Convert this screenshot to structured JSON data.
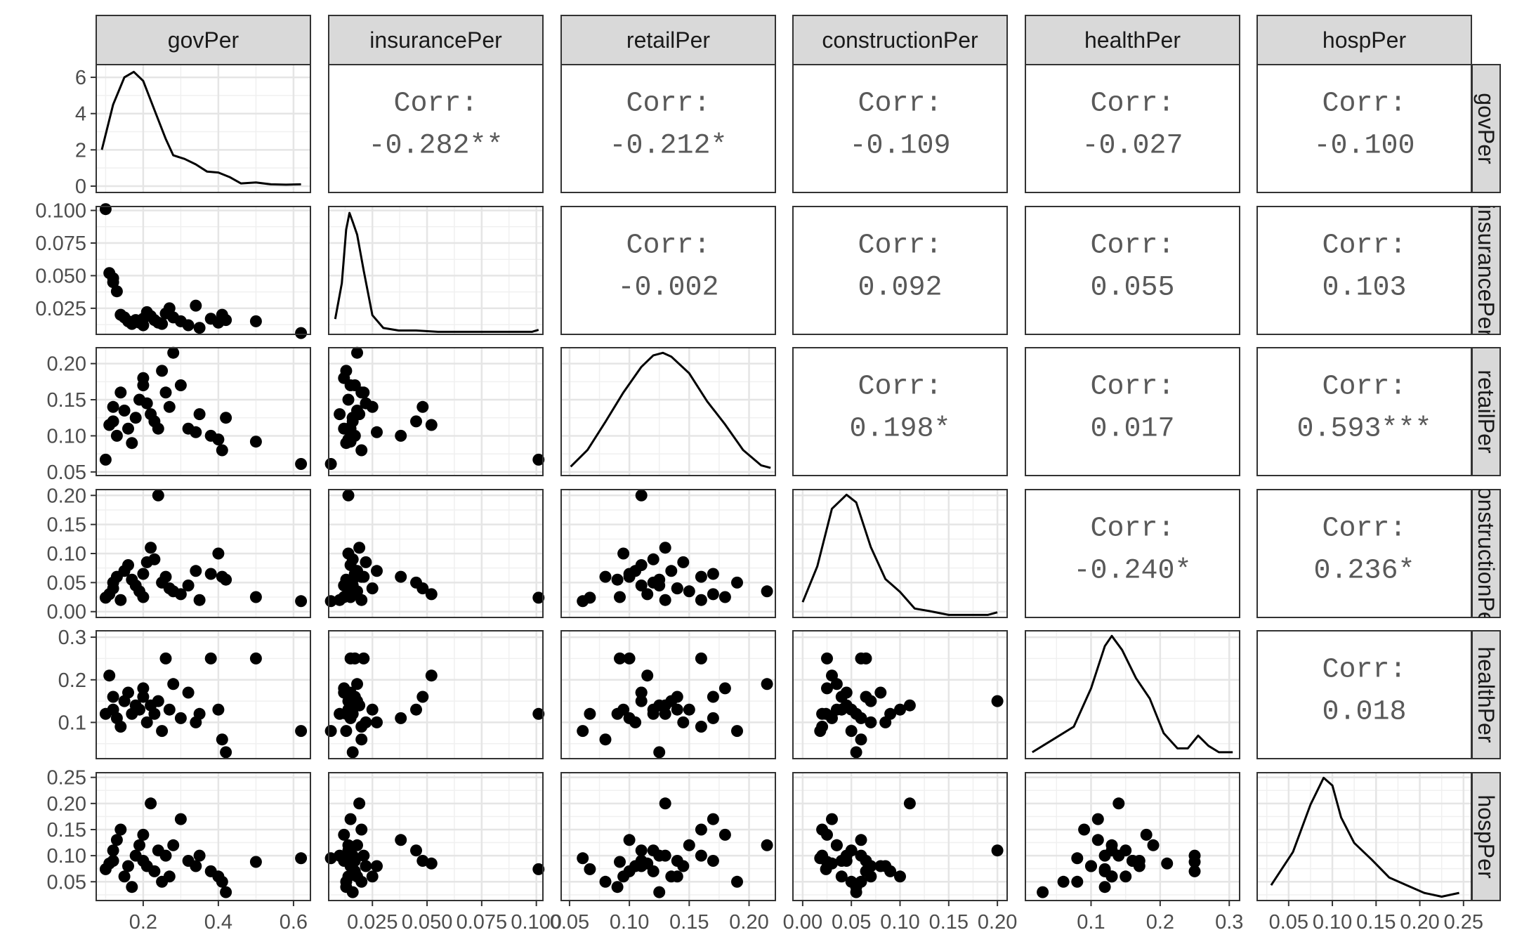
{
  "chart_data": {
    "type": "scatter-matrix",
    "variables": [
      "govPer",
      "insurancePer",
      "retailPer",
      "constructionPer",
      "healthPer",
      "hospPer"
    ],
    "x_axes": [
      {
        "range": [
          0.075,
          0.645
        ],
        "ticks": [
          0.2,
          0.4,
          0.6
        ],
        "tick_labels": [
          "0.2",
          "0.4",
          "0.6"
        ]
      },
      {
        "range": [
          0.005,
          0.103
        ],
        "ticks": [
          0.025,
          0.05,
          0.075,
          0.1
        ],
        "tick_labels": [
          "0.025",
          "0.050",
          "0.075",
          "0.100"
        ]
      },
      {
        "range": [
          0.043,
          0.222
        ],
        "ticks": [
          0.05,
          0.1,
          0.15,
          0.2
        ],
        "tick_labels": [
          "0.05",
          "0.10",
          "0.15",
          "0.20"
        ]
      },
      {
        "range": [
          -0.01,
          0.21
        ],
        "ticks": [
          0.0,
          0.05,
          0.1,
          0.15,
          0.2
        ],
        "tick_labels": [
          "0.00",
          "0.05",
          "0.10",
          "0.15",
          "0.20"
        ]
      },
      {
        "range": [
          0.005,
          0.315
        ],
        "ticks": [
          0.1,
          0.2,
          0.3
        ],
        "tick_labels": [
          "0.1",
          "0.2",
          "0.3"
        ]
      },
      {
        "range": [
          0.014,
          0.259
        ],
        "ticks": [
          0.05,
          0.1,
          0.15,
          0.2,
          0.25
        ],
        "tick_labels": [
          "0.05",
          "0.10",
          "0.15",
          "0.20",
          "0.25"
        ]
      }
    ],
    "y_axes": [
      {
        "range": [
          -0.35,
          6.7
        ],
        "ticks": [
          0,
          2,
          4,
          6
        ],
        "tick_labels": [
          "0",
          "2",
          "4",
          "6"
        ]
      },
      {
        "range": [
          0.005,
          0.103
        ],
        "ticks": [
          0.025,
          0.05,
          0.075,
          0.1
        ],
        "tick_labels": [
          "0.025",
          "0.050",
          "0.075",
          "0.100"
        ]
      },
      {
        "range": [
          0.045,
          0.222
        ],
        "ticks": [
          0.05,
          0.1,
          0.15,
          0.2
        ],
        "tick_labels": [
          "0.05",
          "0.10",
          "0.15",
          "0.20"
        ]
      },
      {
        "range": [
          -0.01,
          0.21
        ],
        "ticks": [
          0.0,
          0.05,
          0.1,
          0.15,
          0.2
        ],
        "tick_labels": [
          "0.00",
          "0.05",
          "0.10",
          "0.15",
          "0.20"
        ]
      },
      {
        "range": [
          0.015,
          0.315
        ],
        "ticks": [
          0.1,
          0.2,
          0.3
        ],
        "tick_labels": [
          "0.1",
          "0.2",
          "0.3"
        ]
      },
      {
        "range": [
          0.014,
          0.259
        ],
        "ticks": [
          0.05,
          0.1,
          0.15,
          0.2,
          0.25
        ],
        "tick_labels": [
          "0.05",
          "0.10",
          "0.15",
          "0.20",
          "0.25"
        ]
      }
    ],
    "correlations": [
      {
        "row": 0,
        "col": 1,
        "label": "Corr:",
        "value": "-0.282**"
      },
      {
        "row": 0,
        "col": 2,
        "label": "Corr:",
        "value": "-0.212*"
      },
      {
        "row": 0,
        "col": 3,
        "label": "Corr:",
        "value": "-0.109"
      },
      {
        "row": 0,
        "col": 4,
        "label": "Corr:",
        "value": "-0.027"
      },
      {
        "row": 0,
        "col": 5,
        "label": "Corr:",
        "value": "-0.100"
      },
      {
        "row": 1,
        "col": 2,
        "label": "Corr:",
        "value": "-0.002"
      },
      {
        "row": 1,
        "col": 3,
        "label": "Corr:",
        "value": "0.092"
      },
      {
        "row": 1,
        "col": 4,
        "label": "Corr:",
        "value": "0.055"
      },
      {
        "row": 1,
        "col": 5,
        "label": "Corr:",
        "value": "0.103"
      },
      {
        "row": 2,
        "col": 3,
        "label": "Corr:",
        "value": "0.198*"
      },
      {
        "row": 2,
        "col": 4,
        "label": "Corr:",
        "value": "0.017"
      },
      {
        "row": 2,
        "col": 5,
        "label": "Corr:",
        "value": "0.593***"
      },
      {
        "row": 3,
        "col": 4,
        "label": "Corr:",
        "value": "-0.240*"
      },
      {
        "row": 3,
        "col": 5,
        "label": "Corr:",
        "value": "0.236*"
      },
      {
        "row": 4,
        "col": 5,
        "label": "Corr:",
        "value": "0.018"
      }
    ],
    "density_curves": [
      {
        "variable": "govPer",
        "axis_y_range": [
          -0.35,
          6.7
        ],
        "points": [
          [
            0.09,
            2.0
          ],
          [
            0.12,
            4.5
          ],
          [
            0.15,
            6.0
          ],
          [
            0.175,
            6.3
          ],
          [
            0.2,
            5.8
          ],
          [
            0.23,
            4.2
          ],
          [
            0.26,
            2.6
          ],
          [
            0.28,
            1.7
          ],
          [
            0.31,
            1.5
          ],
          [
            0.34,
            1.2
          ],
          [
            0.37,
            0.8
          ],
          [
            0.4,
            0.75
          ],
          [
            0.43,
            0.5
          ],
          [
            0.46,
            0.15
          ],
          [
            0.5,
            0.2
          ],
          [
            0.54,
            0.1
          ],
          [
            0.58,
            0.08
          ],
          [
            0.62,
            0.1
          ]
        ]
      },
      {
        "variable": "insurancePer",
        "axis_y_range": [
          0,
          1
        ],
        "points": [
          [
            0.008,
            0.12
          ],
          [
            0.011,
            0.4
          ],
          [
            0.013,
            0.82
          ],
          [
            0.0145,
            0.95
          ],
          [
            0.016,
            0.88
          ],
          [
            0.018,
            0.78
          ],
          [
            0.021,
            0.5
          ],
          [
            0.025,
            0.15
          ],
          [
            0.03,
            0.05
          ],
          [
            0.037,
            0.03
          ],
          [
            0.045,
            0.03
          ],
          [
            0.055,
            0.02
          ],
          [
            0.07,
            0.02
          ],
          [
            0.085,
            0.02
          ],
          [
            0.098,
            0.02
          ],
          [
            0.101,
            0.035
          ]
        ]
      },
      {
        "variable": "retailPer",
        "axis_y_range": [
          0,
          1
        ],
        "points": [
          [
            0.051,
            0.07
          ],
          [
            0.065,
            0.2
          ],
          [
            0.08,
            0.42
          ],
          [
            0.095,
            0.65
          ],
          [
            0.11,
            0.85
          ],
          [
            0.12,
            0.94
          ],
          [
            0.128,
            0.96
          ],
          [
            0.135,
            0.93
          ],
          [
            0.15,
            0.8
          ],
          [
            0.165,
            0.58
          ],
          [
            0.18,
            0.4
          ],
          [
            0.195,
            0.2
          ],
          [
            0.21,
            0.08
          ],
          [
            0.218,
            0.06
          ]
        ]
      },
      {
        "variable": "constructionPer",
        "axis_y_range": [
          0,
          1
        ],
        "points": [
          [
            0.0,
            0.12
          ],
          [
            0.015,
            0.4
          ],
          [
            0.03,
            0.85
          ],
          [
            0.045,
            0.96
          ],
          [
            0.055,
            0.9
          ],
          [
            0.07,
            0.55
          ],
          [
            0.085,
            0.3
          ],
          [
            0.1,
            0.2
          ],
          [
            0.115,
            0.07
          ],
          [
            0.13,
            0.05
          ],
          [
            0.15,
            0.02
          ],
          [
            0.17,
            0.02
          ],
          [
            0.19,
            0.02
          ],
          [
            0.2,
            0.04
          ]
        ]
      },
      {
        "variable": "healthPer",
        "axis_y_range": [
          0,
          1
        ],
        "points": [
          [
            0.015,
            0.05
          ],
          [
            0.045,
            0.15
          ],
          [
            0.075,
            0.25
          ],
          [
            0.1,
            0.55
          ],
          [
            0.12,
            0.88
          ],
          [
            0.13,
            0.96
          ],
          [
            0.145,
            0.85
          ],
          [
            0.165,
            0.63
          ],
          [
            0.185,
            0.47
          ],
          [
            0.205,
            0.2
          ],
          [
            0.225,
            0.08
          ],
          [
            0.24,
            0.08
          ],
          [
            0.255,
            0.18
          ],
          [
            0.27,
            0.1
          ],
          [
            0.285,
            0.05
          ],
          [
            0.305,
            0.05
          ]
        ]
      },
      {
        "variable": "hospPer",
        "axis_y_range": [
          0,
          1
        ],
        "points": [
          [
            0.03,
            0.12
          ],
          [
            0.055,
            0.38
          ],
          [
            0.075,
            0.75
          ],
          [
            0.09,
            0.96
          ],
          [
            0.1,
            0.9
          ],
          [
            0.11,
            0.65
          ],
          [
            0.125,
            0.45
          ],
          [
            0.145,
            0.32
          ],
          [
            0.165,
            0.18
          ],
          [
            0.185,
            0.12
          ],
          [
            0.205,
            0.06
          ],
          [
            0.225,
            0.03
          ],
          [
            0.245,
            0.06
          ]
        ]
      }
    ],
    "records": [
      [
        0.1,
        0.101,
        0.067,
        0.024,
        0.12,
        0.074
      ],
      [
        0.11,
        0.052,
        0.115,
        0.03,
        0.21,
        0.085
      ],
      [
        0.12,
        0.048,
        0.14,
        0.04,
        0.16,
        0.09
      ],
      [
        0.12,
        0.045,
        0.12,
        0.05,
        0.13,
        0.11
      ],
      [
        0.13,
        0.038,
        0.1,
        0.06,
        0.11,
        0.13
      ],
      [
        0.14,
        0.02,
        0.16,
        0.02,
        0.09,
        0.15
      ],
      [
        0.15,
        0.018,
        0.135,
        0.07,
        0.15,
        0.06
      ],
      [
        0.16,
        0.015,
        0.11,
        0.08,
        0.17,
        0.08
      ],
      [
        0.17,
        0.013,
        0.09,
        0.055,
        0.12,
        0.04
      ],
      [
        0.18,
        0.016,
        0.125,
        0.045,
        0.14,
        0.1
      ],
      [
        0.19,
        0.014,
        0.15,
        0.035,
        0.13,
        0.12
      ],
      [
        0.2,
        0.012,
        0.18,
        0.025,
        0.18,
        0.14
      ],
      [
        0.2,
        0.017,
        0.17,
        0.065,
        0.16,
        0.09
      ],
      [
        0.21,
        0.022,
        0.145,
        0.085,
        0.1,
        0.08
      ],
      [
        0.22,
        0.019,
        0.13,
        0.11,
        0.14,
        0.2
      ],
      [
        0.23,
        0.016,
        0.12,
        0.09,
        0.12,
        0.07
      ],
      [
        0.24,
        0.014,
        0.11,
        0.2,
        0.15,
        0.11
      ],
      [
        0.25,
        0.013,
        0.19,
        0.05,
        0.08,
        0.05
      ],
      [
        0.26,
        0.021,
        0.16,
        0.06,
        0.25,
        0.1
      ],
      [
        0.27,
        0.025,
        0.14,
        0.04,
        0.13,
        0.06
      ],
      [
        0.28,
        0.018,
        0.215,
        0.035,
        0.19,
        0.12
      ],
      [
        0.3,
        0.015,
        0.17,
        0.03,
        0.11,
        0.17
      ],
      [
        0.32,
        0.012,
        0.11,
        0.045,
        0.17,
        0.09
      ],
      [
        0.34,
        0.027,
        0.105,
        0.07,
        0.1,
        0.08
      ],
      [
        0.35,
        0.01,
        0.13,
        0.02,
        0.12,
        0.1
      ],
      [
        0.38,
        0.017,
        0.1,
        0.065,
        0.25,
        0.07
      ],
      [
        0.4,
        0.014,
        0.095,
        0.1,
        0.13,
        0.06
      ],
      [
        0.41,
        0.02,
        0.08,
        0.06,
        0.06,
        0.05
      ],
      [
        0.42,
        0.016,
        0.125,
        0.055,
        0.03,
        0.03
      ],
      [
        0.5,
        0.015,
        0.092,
        0.025,
        0.25,
        0.088
      ],
      [
        0.62,
        0.006,
        0.061,
        0.018,
        0.08,
        0.095
      ]
    ]
  }
}
